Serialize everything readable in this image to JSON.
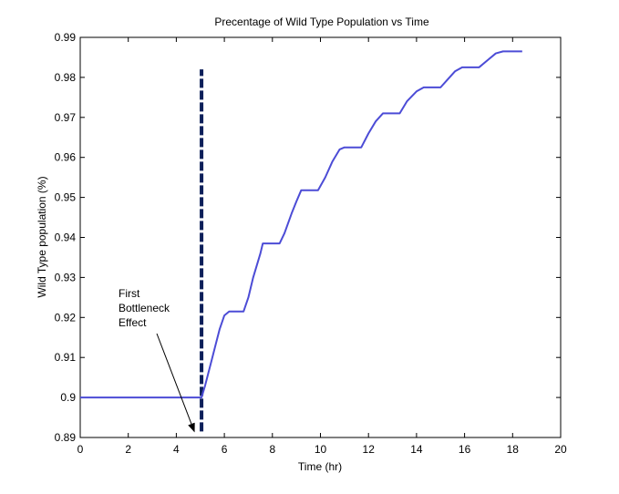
{
  "chart_data": {
    "type": "line",
    "title": "Precentage of Wild Type Population vs Time",
    "xlabel": "Time (hr)",
    "ylabel": "Wild Type population (%)",
    "xlim": [
      0,
      20
    ],
    "ylim": [
      0.89,
      0.99
    ],
    "xticks": [
      0,
      2,
      4,
      6,
      8,
      10,
      12,
      14,
      16,
      18,
      20
    ],
    "yticks": [
      0.89,
      0.9,
      0.91,
      0.92,
      0.93,
      0.94,
      0.95,
      0.96,
      0.97,
      0.98,
      0.99
    ],
    "xtick_labels": [
      "0",
      "2",
      "4",
      "6",
      "8",
      "10",
      "12",
      "14",
      "16",
      "18",
      "20"
    ],
    "ytick_labels": [
      "0.89",
      "0.9",
      "0.91",
      "0.92",
      "0.93",
      "0.94",
      "0.95",
      "0.96",
      "0.97",
      "0.98",
      "0.99"
    ],
    "grid": false,
    "legend": "none",
    "series": [
      {
        "color": "#4c4cd6",
        "x": [
          0,
          1,
          2,
          3,
          4,
          4.9,
          5.05,
          5.2,
          5.5,
          5.8,
          6.0,
          6.2,
          6.6,
          6.8,
          7.0,
          7.2,
          7.5,
          7.6,
          8.3,
          8.5,
          8.8,
          9.0,
          9.2,
          9.4,
          9.9,
          10.2,
          10.5,
          10.8,
          11.0,
          11.7,
          12.0,
          12.3,
          12.6,
          13.3,
          13.6,
          14.0,
          14.3,
          15.0,
          15.3,
          15.6,
          15.9,
          16.6,
          17.0,
          17.3,
          17.6,
          18.4
        ],
        "y": [
          0.9,
          0.9,
          0.9,
          0.9,
          0.9,
          0.9,
          0.9,
          0.903,
          0.91,
          0.917,
          0.9205,
          0.9215,
          0.9215,
          0.9215,
          0.925,
          0.93,
          0.936,
          0.9385,
          0.9385,
          0.941,
          0.946,
          0.949,
          0.9518,
          0.9518,
          0.9518,
          0.955,
          0.959,
          0.962,
          0.9625,
          0.9625,
          0.966,
          0.969,
          0.971,
          0.971,
          0.974,
          0.9765,
          0.9775,
          0.9775,
          0.9795,
          0.9815,
          0.9825,
          0.9825,
          0.9845,
          0.986,
          0.9865,
          0.9865
        ]
      }
    ],
    "bottleneck_line": {
      "x": 5.05,
      "y_from": 0.8915,
      "y_to": 0.982,
      "color": "#0d1f5a"
    },
    "annotation": {
      "lines": [
        "First",
        "Bottleneck",
        "Effect"
      ],
      "arrow_to": [
        4.75,
        0.8915
      ]
    }
  }
}
